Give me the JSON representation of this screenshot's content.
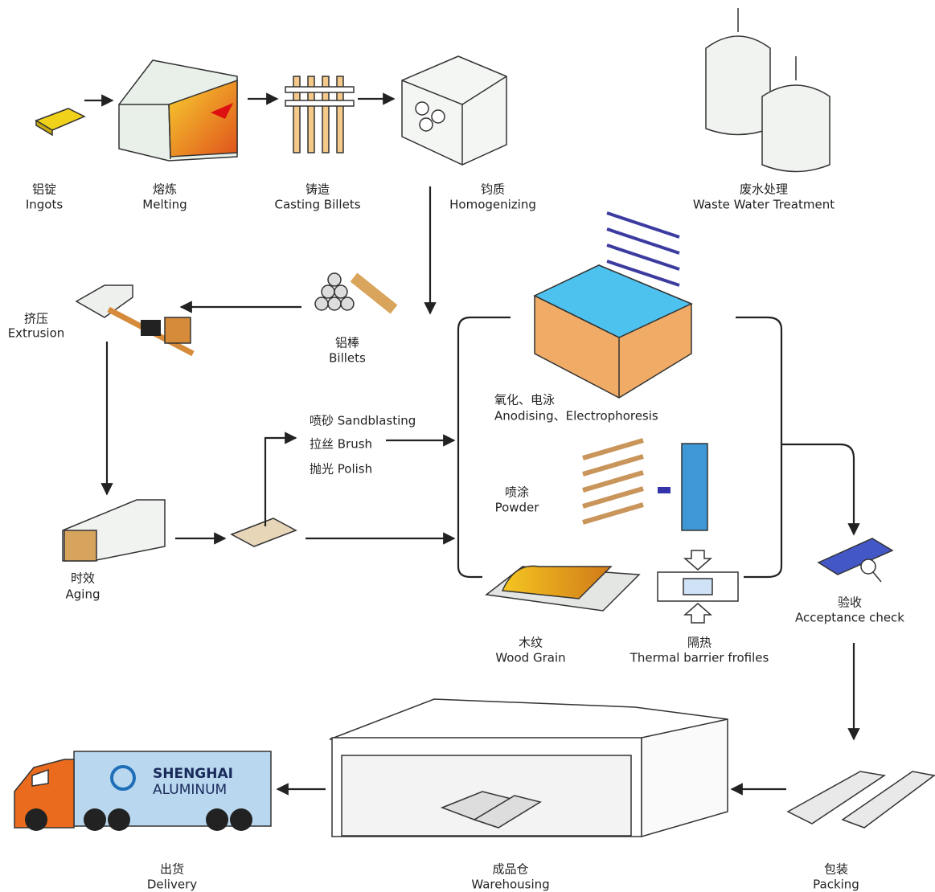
{
  "nodes": [
    {
      "zh": "铝锭",
      "en": "Ingots"
    },
    {
      "zh": "熔炼",
      "en": "Melting"
    },
    {
      "zh": "铸造",
      "en": "Casting Billets"
    },
    {
      "zh": "钧质",
      "en": "Homogenizing"
    },
    {
      "zh": "废水处理",
      "en": "Waste Water Treatment"
    },
    {
      "zh": "挤压",
      "en": "Extrusion"
    },
    {
      "zh": "铝棒",
      "en": "Billets"
    },
    {
      "zh": "氧化、电泳",
      "en": "Anodising、Electrophoresis"
    },
    {
      "zh": "喷涂",
      "en": "Powder"
    },
    {
      "zh": "时效",
      "en": "Aging"
    },
    {
      "zh": "木纹",
      "en": "Wood Grain"
    },
    {
      "zh": "隔热",
      "en": "Thermal barrier frofiles"
    },
    {
      "zh": "验收",
      "en": "Acceptance check"
    },
    {
      "zh": "出货",
      "en": "Delivery"
    },
    {
      "zh": "成品仓",
      "en": "Warehousing"
    },
    {
      "zh": "包装",
      "en": "Packing"
    }
  ],
  "surface_treatments": [
    "喷砂 Sandblasting",
    "拉丝 Brush",
    "抛光 Polish"
  ],
  "logo": {
    "name": "SHENGHAI",
    "sub": "ALUMINUM"
  }
}
